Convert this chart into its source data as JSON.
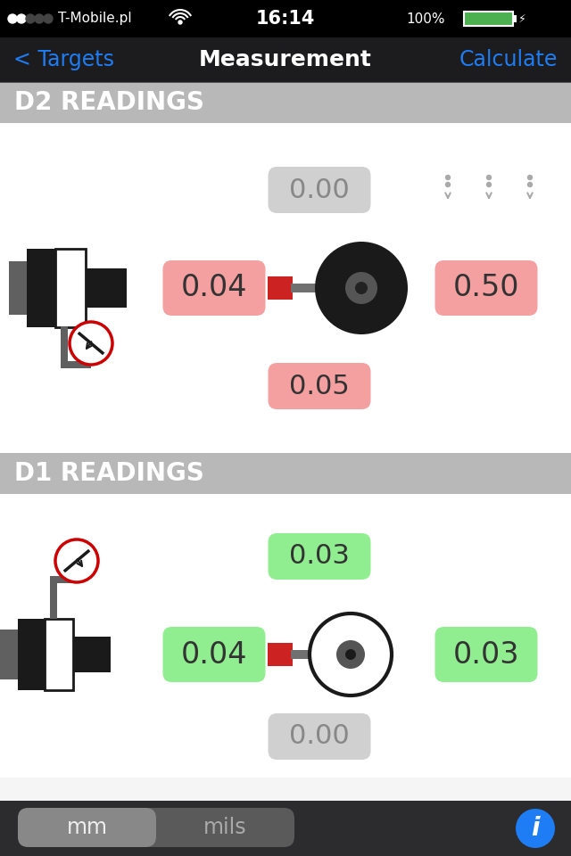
{
  "bg_color": "#000000",
  "nav_accent": "#1e7cf5",
  "nav_title": "Measurement",
  "nav_back": "< Targets",
  "nav_right": "Calculate",
  "status_time": "16:14",
  "status_carrier": "T-Mobile.pl",
  "status_battery": "100%",
  "section_header_bg": "#b8b8b8",
  "section_header_fg": "#ffffff",
  "white_bg": "#f5f5f5",
  "d2_header": "D2 READINGS",
  "d2_top_val": "0.00",
  "d2_top_bg": "#d0d0d0",
  "d2_top_fg": "#888888",
  "d2_left_val": "0.04",
  "d2_left_bg": "#f5a0a0",
  "d2_right_val": "0.50",
  "d2_right_bg": "#f5a0a0",
  "d2_bot_val": "0.05",
  "d2_bot_bg": "#f5a0a0",
  "d1_header": "D1 READINGS",
  "d1_top_val": "0.03",
  "d1_top_bg": "#90ee90",
  "d1_left_val": "0.04",
  "d1_left_bg": "#90ee90",
  "d1_right_val": "0.03",
  "d1_right_bg": "#90ee90",
  "d1_bot_val": "0.00",
  "d1_bot_bg": "#d0d0d0",
  "d1_bot_fg": "#888888",
  "text_dark": "#333333",
  "toolbar_bg": "#3a3a3a",
  "toolbar_toggle_bg": "#5a5a5a",
  "toolbar_mm_bg": "#888888",
  "info_blue": "#1e7cf5",
  "red_connector": "#cc2222",
  "gray_shaft": "#606060",
  "machine_black": "#1a1a1a",
  "machine_gray": "#707070",
  "gauge_red": "#cc0000"
}
